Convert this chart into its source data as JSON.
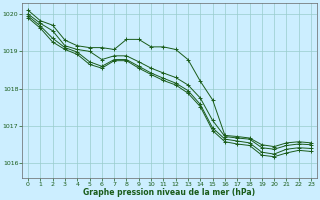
{
  "title": "",
  "xlabel": "Graphe pression niveau de la mer (hPa)",
  "ylabel": "",
  "background_color": "#cceeff",
  "grid_color": "#99cccc",
  "line_color": "#1a5c1a",
  "xlim": [
    -0.5,
    23.5
  ],
  "ylim": [
    1015.6,
    1020.3
  ],
  "yticks": [
    1016,
    1017,
    1018,
    1019,
    1020
  ],
  "xticks": [
    0,
    1,
    2,
    3,
    4,
    5,
    6,
    7,
    8,
    9,
    10,
    11,
    12,
    13,
    14,
    15,
    16,
    17,
    18,
    19,
    20,
    21,
    22,
    23
  ],
  "series": [
    {
      "x": [
        0,
        1,
        2,
        3,
        4,
        5,
        6,
        7,
        8,
        9,
        10,
        11,
        12,
        13,
        14,
        15,
        16,
        17,
        18,
        19,
        20,
        21,
        22,
        23
      ],
      "y": [
        1020.1,
        1019.82,
        1019.7,
        1019.3,
        1019.15,
        1019.1,
        1019.1,
        1019.05,
        1019.32,
        1019.32,
        1019.12,
        1019.12,
        1019.05,
        1018.78,
        1018.2,
        1017.7,
        1016.75,
        1016.72,
        1016.68,
        1016.5,
        1016.45,
        1016.55,
        1016.58,
        1016.55
      ]
    },
    {
      "x": [
        0,
        1,
        2,
        3,
        4,
        5,
        6,
        7,
        8,
        9,
        10,
        11,
        12,
        13,
        14,
        15,
        16,
        17,
        18,
        19,
        20,
        21,
        22,
        23
      ],
      "y": [
        1020.0,
        1019.75,
        1019.55,
        1019.15,
        1019.05,
        1019.0,
        1018.78,
        1018.88,
        1018.88,
        1018.72,
        1018.55,
        1018.42,
        1018.3,
        1018.1,
        1017.75,
        1017.15,
        1016.72,
        1016.68,
        1016.65,
        1016.42,
        1016.38,
        1016.48,
        1016.52,
        1016.5
      ]
    },
    {
      "x": [
        0,
        1,
        2,
        3,
        4,
        5,
        6,
        7,
        8,
        9,
        10,
        11,
        12,
        13,
        14,
        15,
        16,
        17,
        18,
        19,
        20,
        21,
        22,
        23
      ],
      "y": [
        1019.95,
        1019.68,
        1019.35,
        1019.1,
        1018.98,
        1018.72,
        1018.6,
        1018.78,
        1018.78,
        1018.6,
        1018.42,
        1018.28,
        1018.15,
        1017.95,
        1017.58,
        1016.95,
        1016.65,
        1016.6,
        1016.55,
        1016.3,
        1016.25,
        1016.38,
        1016.42,
        1016.4
      ]
    },
    {
      "x": [
        0,
        1,
        2,
        3,
        4,
        5,
        6,
        7,
        8,
        9,
        10,
        11,
        12,
        13,
        14,
        15,
        16,
        17,
        18,
        19,
        20,
        21,
        22,
        23
      ],
      "y": [
        1019.9,
        1019.62,
        1019.25,
        1019.05,
        1018.92,
        1018.65,
        1018.55,
        1018.75,
        1018.75,
        1018.55,
        1018.38,
        1018.22,
        1018.1,
        1017.88,
        1017.52,
        1016.88,
        1016.58,
        1016.52,
        1016.48,
        1016.22,
        1016.18,
        1016.28,
        1016.35,
        1016.32
      ]
    }
  ]
}
